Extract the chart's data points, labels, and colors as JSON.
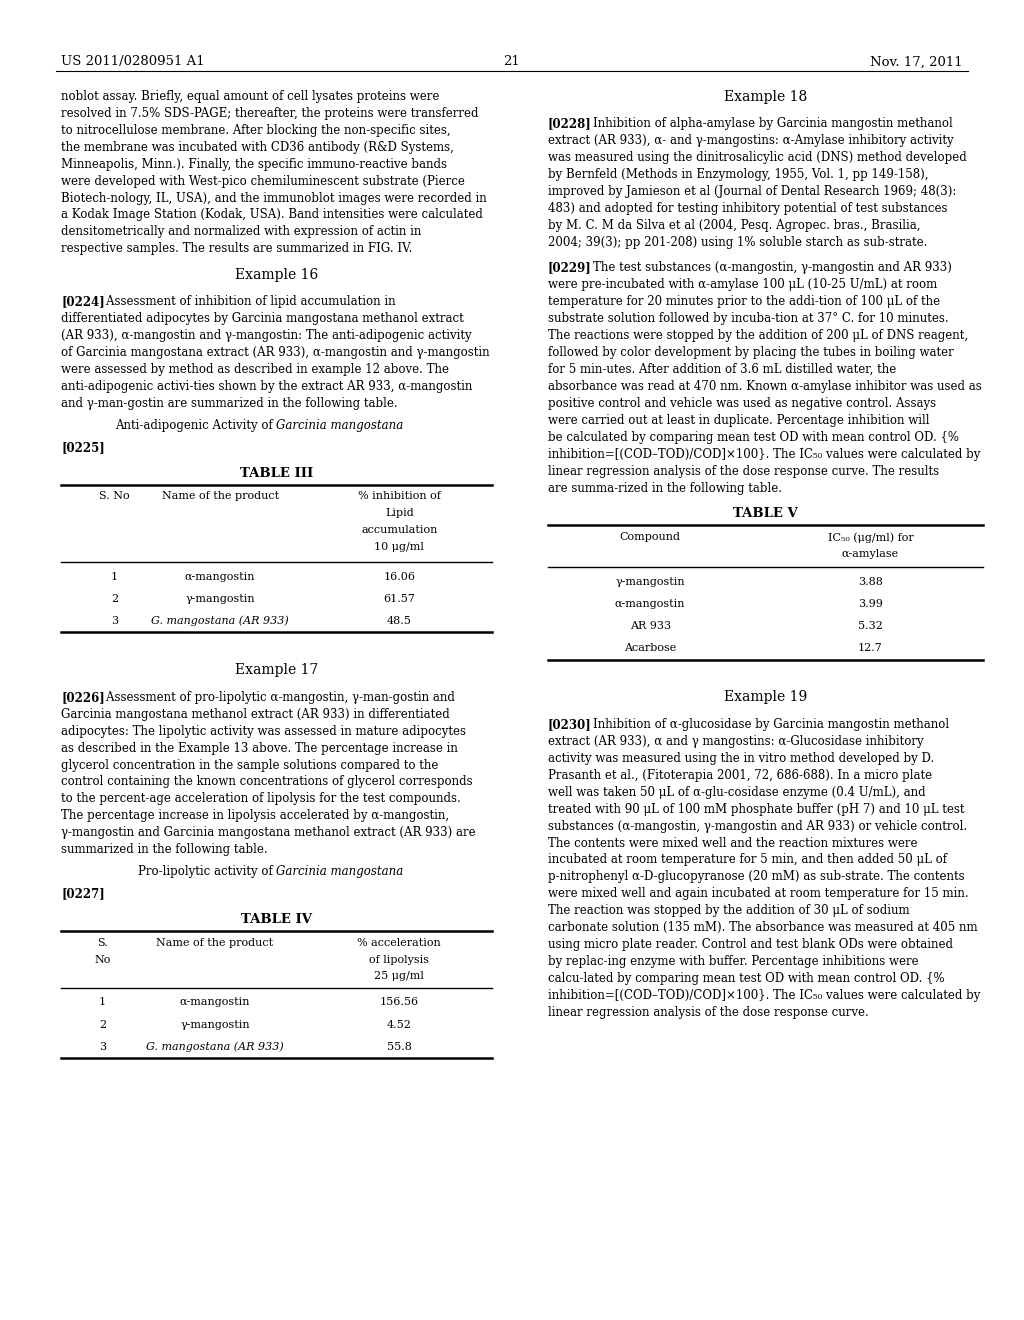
{
  "header_left": "US 2011/0280951 A1",
  "header_right": "Nov. 17, 2011",
  "page_number": "21",
  "background_color": "#ffffff",
  "table3_data": {
    "headers": [
      "S. No",
      "Name of the product",
      "% inhibition of\nLipid\naccumulation\n10 μg/ml"
    ],
    "rows": [
      [
        "1",
        "α-mangostin",
        "16.06"
      ],
      [
        "2",
        "γ-mangostin",
        "61.57"
      ],
      [
        "3",
        "G. mangostana (AR 933)",
        "48.5"
      ]
    ]
  },
  "table4_data": {
    "headers": [
      "S.\nNo",
      "Name of the product",
      "% acceleration\nof lipolysis\n25 μg/ml"
    ],
    "rows": [
      [
        "1",
        "α-mangostin",
        "156.56"
      ],
      [
        "2",
        "γ-mangostin",
        "4.52"
      ],
      [
        "3",
        "G. mangostana (AR 933)",
        "55.8"
      ]
    ]
  },
  "table5_data": {
    "headers": [
      "Compound",
      "IC₅₀ (μg/ml) for\nα-amylase"
    ],
    "rows": [
      [
        "γ-mangostin",
        "3.88"
      ],
      [
        "α-mangostin",
        "3.99"
      ],
      [
        "AR 933",
        "5.32"
      ],
      [
        "Acarbose",
        "12.7"
      ]
    ]
  }
}
